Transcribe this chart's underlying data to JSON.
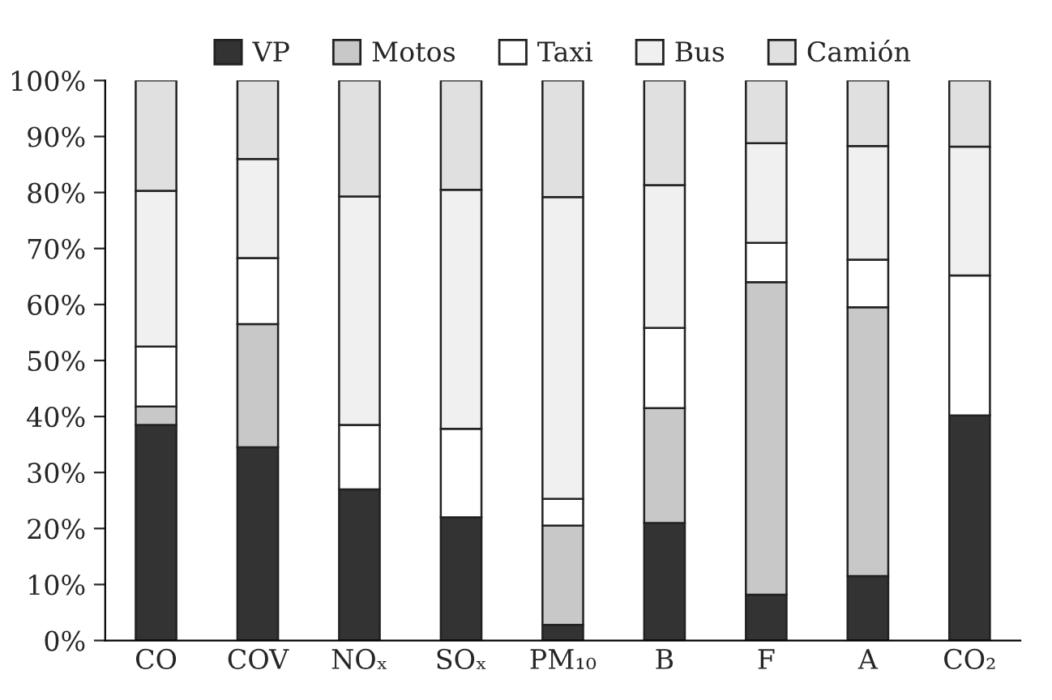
{
  "chart_data": {
    "type": "bar",
    "stacked": true,
    "categories": [
      "CO",
      "COV",
      "NOₓ",
      "SOₓ",
      "PM₁₀",
      "B",
      "F",
      "A",
      "CO₂"
    ],
    "series": [
      {
        "name": "VP",
        "color": "#333333",
        "values": [
          38.5,
          34.5,
          27,
          22,
          2.8,
          21,
          8.2,
          11.5,
          40.2
        ]
      },
      {
        "name": "Motos",
        "color": "#c8c8c8",
        "values": [
          3.3,
          22,
          0,
          0,
          17.7,
          20.5,
          55.8,
          48,
          0
        ]
      },
      {
        "name": "Taxi",
        "color": "#ffffff",
        "values": [
          10.7,
          11.8,
          11.5,
          15.8,
          4.8,
          14.3,
          7,
          8.5,
          25
        ]
      },
      {
        "name": "Bus",
        "color": "#f0f0f0",
        "values": [
          27.8,
          17.7,
          40.8,
          42.7,
          53.9,
          25.5,
          17.8,
          20.3,
          23
        ]
      },
      {
        "name": "Camión",
        "color": "#e0e0e0",
        "values": [
          19.7,
          14,
          20.7,
          19.5,
          20.8,
          18.7,
          11.2,
          11.7,
          11.8
        ]
      }
    ],
    "ylim": [
      0,
      100
    ],
    "yticks": [
      {
        "value": 0,
        "label": "0%"
      },
      {
        "value": 10,
        "label": "10%"
      },
      {
        "value": 20,
        "label": "20%"
      },
      {
        "value": 30,
        "label": "30%"
      },
      {
        "value": 40,
        "label": "40%"
      },
      {
        "value": 50,
        "label": "50%"
      },
      {
        "value": 60,
        "label": "60%"
      },
      {
        "value": 70,
        "label": "70%"
      },
      {
        "value": 80,
        "label": "80%"
      },
      {
        "value": 90,
        "label": "90%"
      },
      {
        "value": 100,
        "label": "100%"
      }
    ],
    "legend": "top",
    "grid": false
  }
}
